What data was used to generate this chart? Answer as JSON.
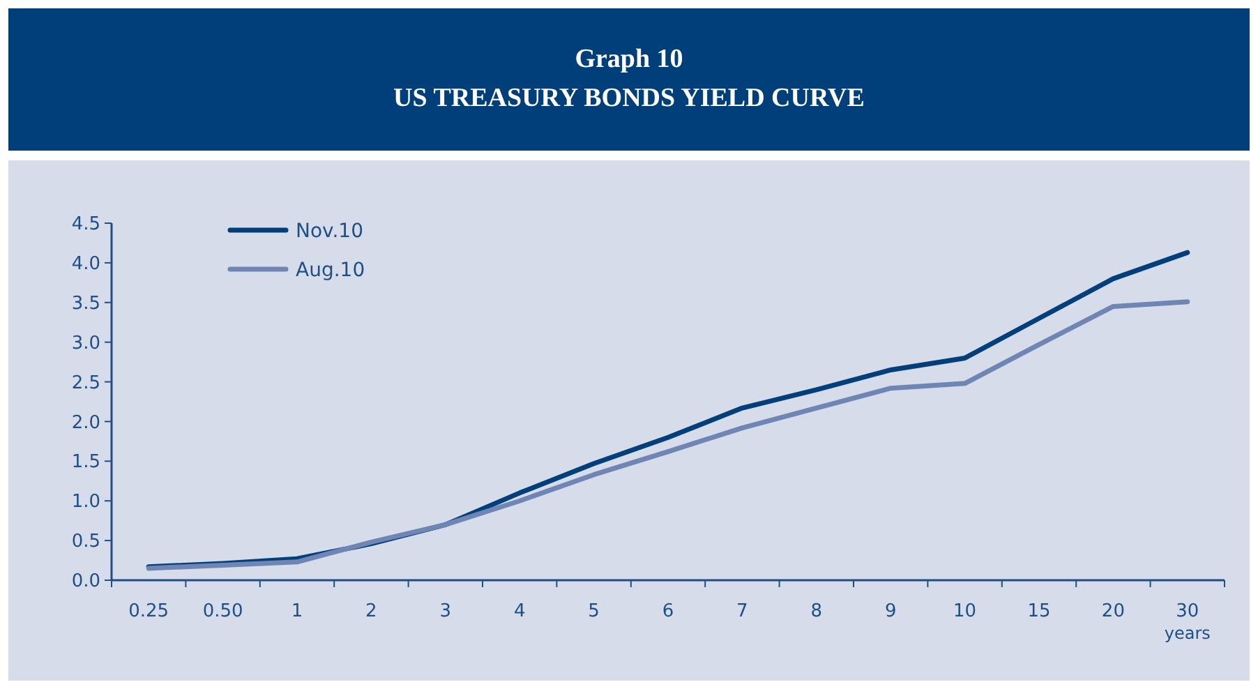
{
  "chart_data": {
    "type": "line",
    "title": "Graph 10",
    "subtitle": "US TREASURY BONDS YIELD CURVE",
    "xlabel": "years",
    "categories": [
      "0.25",
      "0.50",
      "1",
      "2",
      "3",
      "4",
      "5",
      "6",
      "7",
      "8",
      "9",
      "10",
      "15",
      "20",
      "30"
    ],
    "series": [
      {
        "name": "Nov.10",
        "color": "#003f7a",
        "values": [
          0.17,
          0.21,
          0.27,
          0.46,
          0.7,
          1.1,
          1.47,
          1.8,
          2.17,
          2.4,
          2.65,
          2.8,
          3.3,
          3.8,
          4.13
        ]
      },
      {
        "name": "Aug.10",
        "color": "#6f86b5",
        "values": [
          0.15,
          0.19,
          0.23,
          0.48,
          0.7,
          1.0,
          1.33,
          1.62,
          1.92,
          2.17,
          2.42,
          2.48,
          2.97,
          3.45,
          3.51
        ]
      }
    ],
    "ylim": [
      0,
      4.5
    ],
    "yticks": [
      {
        "value": 0,
        "label": "0.0"
      },
      {
        "value": 0.5,
        "label": "0.5"
      },
      {
        "value": 1,
        "label": "1.0"
      },
      {
        "value": 1.5,
        "label": "1.5"
      },
      {
        "value": 2,
        "label": "2.0"
      },
      {
        "value": 2.5,
        "label": "2.5"
      },
      {
        "value": 3,
        "label": "3.0"
      },
      {
        "value": 3.5,
        "label": "3.5"
      },
      {
        "value": 4,
        "label": "4.0"
      },
      {
        "value": 4.5,
        "label": "4.5"
      }
    ],
    "grid": false,
    "legend": "top left",
    "line_style": "solid",
    "marker": "none"
  }
}
